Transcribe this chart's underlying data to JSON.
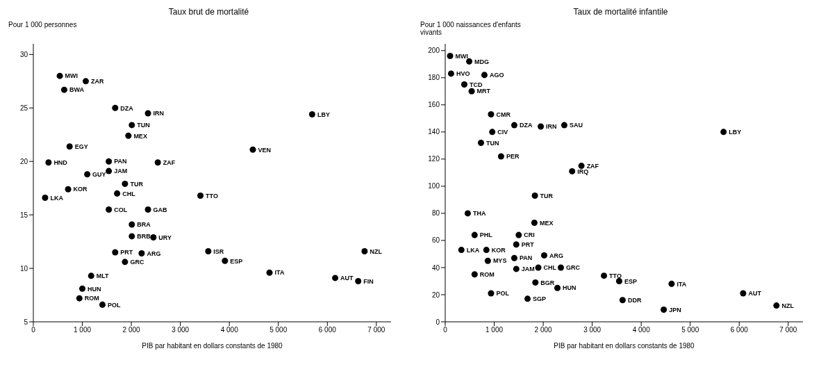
{
  "chart_data": [
    {
      "type": "scatter",
      "title": "Taux brut de mortalité",
      "ylabel": "Pour 1 000 personnes",
      "xlabel": "PIB par habitant en dollars constants de 1980",
      "marker": "circle",
      "grid": false,
      "legend": false,
      "xlim": [
        0,
        7300
      ],
      "xticks": [
        0,
        {
          "value": 1000,
          "label": "1 000"
        },
        {
          "value": 2000,
          "label": "2 000"
        },
        {
          "value": 3000,
          "label": "3 000"
        },
        {
          "value": 4000,
          "label": "4 000"
        },
        {
          "value": 5000,
          "label": "5 000"
        },
        {
          "value": 6000,
          "label": "6 000"
        },
        {
          "value": 7000,
          "label": "7 000"
        }
      ],
      "ylim": [
        5,
        31
      ],
      "yticks": [
        5,
        10,
        15,
        20,
        25,
        30
      ],
      "series": [
        {
          "color": "#000000",
          "x": [
            540,
            1070,
            630,
            1670,
            2340,
            5690,
            2010,
            1940,
            740,
            4480,
            310,
            1540,
            2540,
            1100,
            1540,
            1870,
            710,
            1710,
            3410,
            240,
            1540,
            2340,
            2010,
            2010,
            2450,
            1670,
            2210,
            1870,
            3570,
            3910,
            6760,
            4820,
            6160,
            6630,
            1180,
            1000,
            940,
            1410
          ],
          "values": [
            28.0,
            27.5,
            26.7,
            25.0,
            24.5,
            24.4,
            23.4,
            22.4,
            21.4,
            21.1,
            19.9,
            20.0,
            19.9,
            18.8,
            19.1,
            17.9,
            17.4,
            17.0,
            16.8,
            16.6,
            15.5,
            15.5,
            14.1,
            13.0,
            12.9,
            11.5,
            11.4,
            10.6,
            11.6,
            10.7,
            11.6,
            9.6,
            9.1,
            8.8,
            9.3,
            8.1,
            7.2,
            6.6
          ],
          "value_labels": [
            "MWI",
            "ZAR",
            "BWA",
            "DZA",
            "IRN",
            "LBY",
            "TUN",
            "MEX",
            "EGY",
            "VEN",
            "HND",
            "PAN",
            "ZAF",
            "GUY",
            "JAM",
            "TUR",
            "KOR",
            "CHL",
            "TTO",
            "LKA",
            "COL",
            "GAB",
            "BRA",
            "BRB",
            "URY",
            "PRT",
            "ARG",
            "GRC",
            "ISR",
            "ESP",
            "NZL",
            "ITA",
            "AUT",
            "FIN",
            "MLT",
            "HUN",
            "ROM",
            "POL"
          ]
        }
      ]
    },
    {
      "type": "scatter",
      "title": "Taux de mortalité infantile",
      "ylabel": "Pour 1 000 naissances d'enfants vivants",
      "xlabel": "PIB par habitant en dollars constants de 1980",
      "marker": "circle",
      "grid": false,
      "legend": false,
      "xlim": [
        0,
        7300
      ],
      "xticks": [
        0,
        {
          "value": 1000,
          "label": "1 000"
        },
        {
          "value": 2000,
          "label": "2 000"
        },
        {
          "value": 3000,
          "label": "3 000"
        },
        {
          "value": 4000,
          "label": "4 000"
        },
        {
          "value": 5000,
          "label": "5 000"
        },
        {
          "value": 6000,
          "label": "6 000"
        },
        {
          "value": 7000,
          "label": "7 000"
        }
      ],
      "ylim": [
        0,
        205
      ],
      "yticks": [
        0,
        20,
        40,
        60,
        80,
        100,
        120,
        140,
        160,
        180,
        200
      ],
      "series": [
        {
          "color": "#000000",
          "x": [
            100,
            490,
            120,
            800,
            390,
            540,
            935,
            1410,
            1950,
            2430,
            960,
            730,
            1140,
            2780,
            2590,
            5680,
            1830,
            460,
            1820,
            600,
            1500,
            1450,
            330,
            840,
            870,
            1410,
            2020,
            1450,
            1900,
            2360,
            600,
            1840,
            2290,
            3240,
            3550,
            4620,
            935,
            1680,
            3620,
            4460,
            6080,
            6760
          ],
          "values": [
            196,
            192,
            183,
            182,
            175,
            170,
            153,
            145,
            144,
            145,
            140,
            132,
            122,
            115,
            111,
            140,
            93,
            80,
            73,
            64,
            64,
            57,
            53,
            53,
            45,
            47,
            49,
            39,
            40,
            40,
            35,
            29,
            25,
            34,
            30,
            28,
            21,
            17,
            16,
            9,
            21,
            12
          ],
          "value_labels": [
            "MWI",
            "MDG",
            "HVO",
            "AGO",
            "TCD",
            "MRT",
            "CMR",
            "DZA",
            "IRN",
            "SAU",
            "CIV",
            "TUN",
            "PER",
            "ZAF",
            "IRQ",
            "LBY",
            "TUR",
            "THA",
            "MEX",
            "PHL",
            "CRI",
            "PRT",
            "LKA",
            "KOR",
            "MYS",
            "PAN",
            "ARG",
            "JAM",
            "CHL",
            "GRC",
            "ROM",
            "BGR",
            "HUN",
            "TTO",
            "ESP",
            "ITA",
            "POL",
            "SGP",
            "DDR",
            "JPN",
            "AUT",
            "NZL"
          ]
        }
      ]
    }
  ]
}
